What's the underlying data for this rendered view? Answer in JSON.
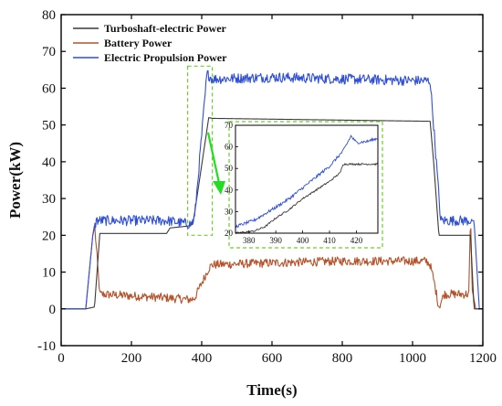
{
  "chart_data": {
    "type": "line",
    "xlabel": "Time(s)",
    "ylabel": "Power(kW)",
    "xlim": [
      0,
      1200
    ],
    "ylim": [
      -10,
      80
    ],
    "x_ticks": [
      0,
      200,
      400,
      600,
      800,
      1000,
      1200
    ],
    "y_ticks": [
      -10,
      0,
      10,
      20,
      30,
      40,
      50,
      60,
      70,
      80
    ],
    "legend_position": "top-left",
    "colors": {
      "turboshaft": "#3a3a3a",
      "battery": "#b5522a",
      "propulsion": "#2f4fd6",
      "highlight_box": "#6fcf2a",
      "arrow": "#22dd22"
    },
    "series": [
      {
        "name": "Turboshaft-electric Power",
        "key": "turboshaft",
        "x": [
          0,
          70,
          95,
          110,
          300,
          310,
          360,
          375,
          420,
          430,
          1050,
          1060,
          1075,
          1150,
          1165,
          1175,
          1190,
          1200
        ],
        "y": [
          0,
          0,
          0.5,
          20.5,
          20.5,
          22,
          22.5,
          23,
          52,
          51.8,
          51,
          40,
          20,
          20,
          20,
          0,
          0,
          0
        ],
        "noise": 0
      },
      {
        "name": "Battery Power",
        "key": "battery",
        "x": [
          0,
          70,
          90,
          95,
          110,
          300,
          370,
          380,
          420,
          430,
          600,
          800,
          1040,
          1050,
          1060,
          1075,
          1090,
          1160,
          1165,
          1170,
          1180,
          1200
        ],
        "y": [
          0,
          0,
          20,
          23,
          4,
          3,
          2.5,
          3,
          11,
          12,
          12.5,
          13,
          13,
          12,
          8,
          0.5,
          4,
          4,
          25,
          5,
          0,
          0
        ],
        "noise": 1.2
      },
      {
        "name": "Electric Propulsion Power",
        "key": "propulsion",
        "x": [
          0,
          70,
          90,
          100,
          110,
          300,
          370,
          380,
          415,
          430,
          600,
          800,
          1040,
          1050,
          1060,
          1080,
          1165,
          1175,
          1190,
          1200
        ],
        "y": [
          0,
          0,
          20,
          24,
          24,
          24,
          23,
          25,
          64,
          62.5,
          63,
          62.5,
          62,
          62,
          50,
          24,
          24,
          24,
          0,
          0
        ],
        "noise": 1.4
      }
    ],
    "inset": {
      "xlim": [
        375,
        428
      ],
      "ylim": [
        20,
        70
      ],
      "x_ticks": [
        380,
        390,
        400,
        410,
        420
      ],
      "y_ticks": [
        20,
        30,
        40,
        50,
        60,
        70
      ],
      "series": [
        {
          "key": "turboshaft",
          "x": [
            375,
            382,
            386,
            390,
            395,
            400,
            405,
            410,
            414,
            415,
            420,
            428
          ],
          "y": [
            20,
            21,
            23,
            27,
            31,
            36,
            40,
            44,
            48,
            52,
            52,
            52
          ],
          "noise": 0.4
        },
        {
          "key": "propulsion",
          "x": [
            375,
            382,
            390,
            395,
            400,
            405,
            410,
            415,
            418,
            420,
            424,
            428
          ],
          "y": [
            23,
            26,
            32,
            36,
            41,
            46,
            51,
            58,
            65,
            62,
            62.5,
            64
          ],
          "noise": 0.7
        }
      ]
    },
    "highlight_regions": [
      {
        "x": [
          360,
          430
        ],
        "y": [
          20,
          66
        ]
      }
    ]
  }
}
